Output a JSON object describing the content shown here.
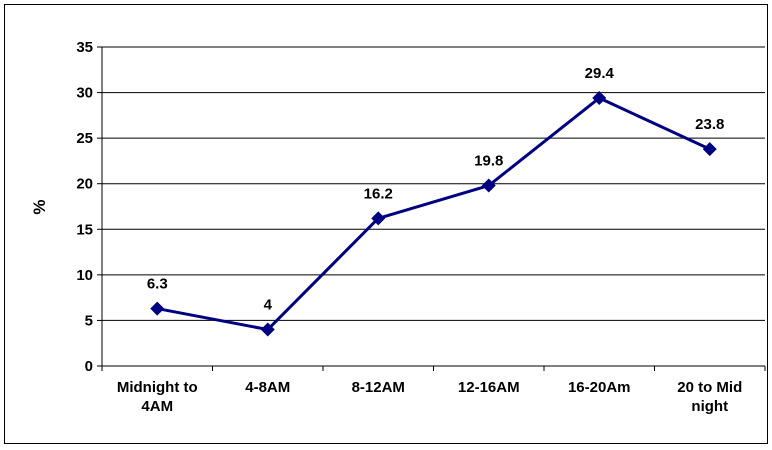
{
  "chart_data": {
    "type": "line",
    "title": "",
    "xlabel": "",
    "ylabel": "%",
    "ylim": [
      0,
      35
    ],
    "yticks": [
      0,
      5,
      10,
      15,
      20,
      25,
      30,
      35
    ],
    "grid": true,
    "legend": "none",
    "categories": [
      [
        "Midnight to",
        "4AM"
      ],
      [
        "4-8AM"
      ],
      [
        "8-12AM"
      ],
      [
        "12-16AM"
      ],
      [
        "16-20Am"
      ],
      [
        "20 to Mid",
        "night"
      ]
    ],
    "series": [
      {
        "values": [
          6.3,
          4,
          16.2,
          19.8,
          29.4,
          23.8
        ],
        "data_labels": [
          "6.3",
          "4",
          "16.2",
          "19.8",
          "29.4",
          "23.8"
        ],
        "color": "#000080",
        "marker": "diamond"
      }
    ]
  }
}
